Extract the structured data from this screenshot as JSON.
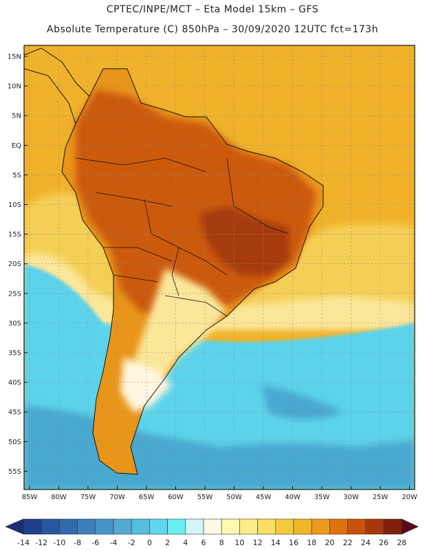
{
  "header": {
    "line1": "CPTEC/INPE/MCT –  Eta Model 15km – GFS",
    "line2": "Absolute Temperature (C) 850hPa – 30/09/2020 12UTC fct=173h"
  },
  "lat_labels": [
    "15N",
    "10N",
    "5N",
    "EQ",
    "5S",
    "10S",
    "15S",
    "20S",
    "25S",
    "30S",
    "35S",
    "40S",
    "45S",
    "50S",
    "55S"
  ],
  "lon_labels": [
    "85W",
    "80W",
    "75W",
    "70W",
    "65W",
    "60W",
    "55W",
    "50W",
    "45W",
    "40W",
    "35W",
    "30W",
    "25W",
    "20W"
  ],
  "colorbar": {
    "labels": [
      "-14",
      "-12",
      "-10",
      "-8",
      "-6",
      "-4",
      "-2",
      "0",
      "2",
      "4",
      "6",
      "8",
      "10",
      "12",
      "14",
      "16",
      "18",
      "20",
      "22",
      "24",
      "26",
      "28"
    ],
    "colors": [
      "#1f3f8f",
      "#2a56a0",
      "#3369ad",
      "#3d7fbb",
      "#4894c7",
      "#52a9d1",
      "#55bedf",
      "#5fd6ea",
      "#66eef2",
      "#d3f6fa",
      "#fff8e6",
      "#fff9b0",
      "#fbeb8a",
      "#f9df63",
      "#f4ca3c",
      "#f1b628",
      "#ec9a1c",
      "#e0720e",
      "#c8520b",
      "#a7380a",
      "#7e2108"
    ],
    "left_arrow_color": "#1b2d75",
    "right_arrow_color": "#5c0a1c"
  },
  "map_colors": {
    "warm_ocean": "#f0b22a",
    "mid_ocean": "#f5cf55",
    "cool_ocean": "#5cd3ea",
    "cold_ocean": "#4aa8d0",
    "land_hot": "#a63a0c",
    "land_warm": "#cc5a10",
    "land_mid": "#e9951a",
    "land_pale": "#fbe79a",
    "land_cool": "#fff7e0"
  }
}
